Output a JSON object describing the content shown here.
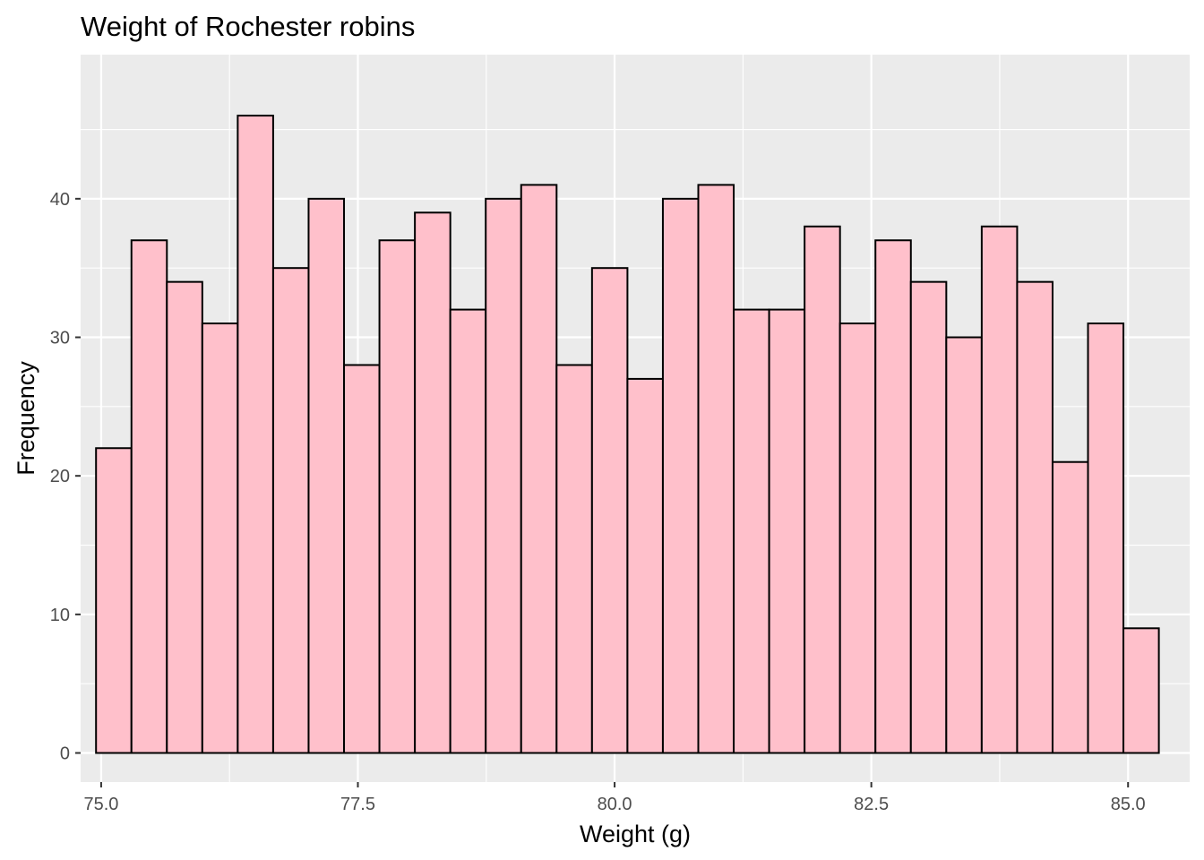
{
  "chart_data": {
    "type": "bar",
    "title": "Weight of Rochester robins",
    "xlabel": "Weight (g)",
    "ylabel": "Frequency",
    "xlim": [
      74.8,
      85.6
    ],
    "ylim": [
      -2.1,
      50.4
    ],
    "x_ticks": [
      75.0,
      77.5,
      80.0,
      82.5,
      85.0
    ],
    "x_tick_labels": [
      "75.0",
      "77.5",
      "80.0",
      "82.5",
      "85.0"
    ],
    "y_ticks": [
      0,
      10,
      20,
      30,
      40
    ],
    "y_tick_labels": [
      "0",
      "10",
      "20",
      "30",
      "40"
    ],
    "bin_start": 74.95,
    "bin_width": 0.345,
    "values": [
      22,
      37,
      34,
      31,
      46,
      35,
      40,
      28,
      37,
      39,
      32,
      40,
      41,
      28,
      35,
      27,
      40,
      41,
      32,
      32,
      38,
      31,
      37,
      34,
      30,
      38,
      34,
      21,
      31,
      9
    ],
    "grid": true,
    "legend": "none",
    "colors": {
      "panel_background": "#ebebeb",
      "grid_line": "#ffffff",
      "bar_fill": "#ffc0cb",
      "bar_outline": "#000000",
      "tick_text": "#4d4d4d",
      "tick_mark": "#333333"
    }
  }
}
